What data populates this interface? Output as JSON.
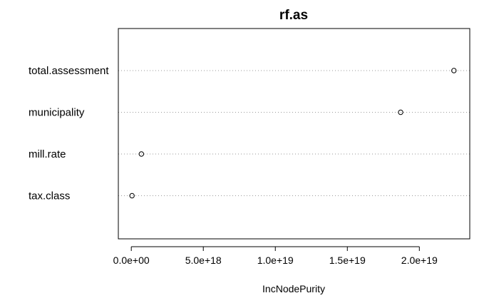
{
  "chart_data": {
    "type": "scatter",
    "title": "rf.as",
    "xlabel": "IncNodePurity",
    "ylabel": "",
    "categories": [
      "total.assessment",
      "municipality",
      "mill.rate",
      "tax.class"
    ],
    "values": [
      2.24e+19,
      1.87e+19,
      7e+17,
      5e+16
    ],
    "xlim": [
      -9e+17,
      2.35e+19
    ],
    "xticks": [
      0,
      5e+18,
      1e+19,
      1.5e+19,
      2e+19
    ],
    "xtick_labels": [
      "0.0e+00",
      "5.0e+18",
      "1.0e+19",
      "1.5e+19",
      "2.0e+19"
    ],
    "grid": "dotted horizontal lines per category",
    "legend": "none"
  }
}
